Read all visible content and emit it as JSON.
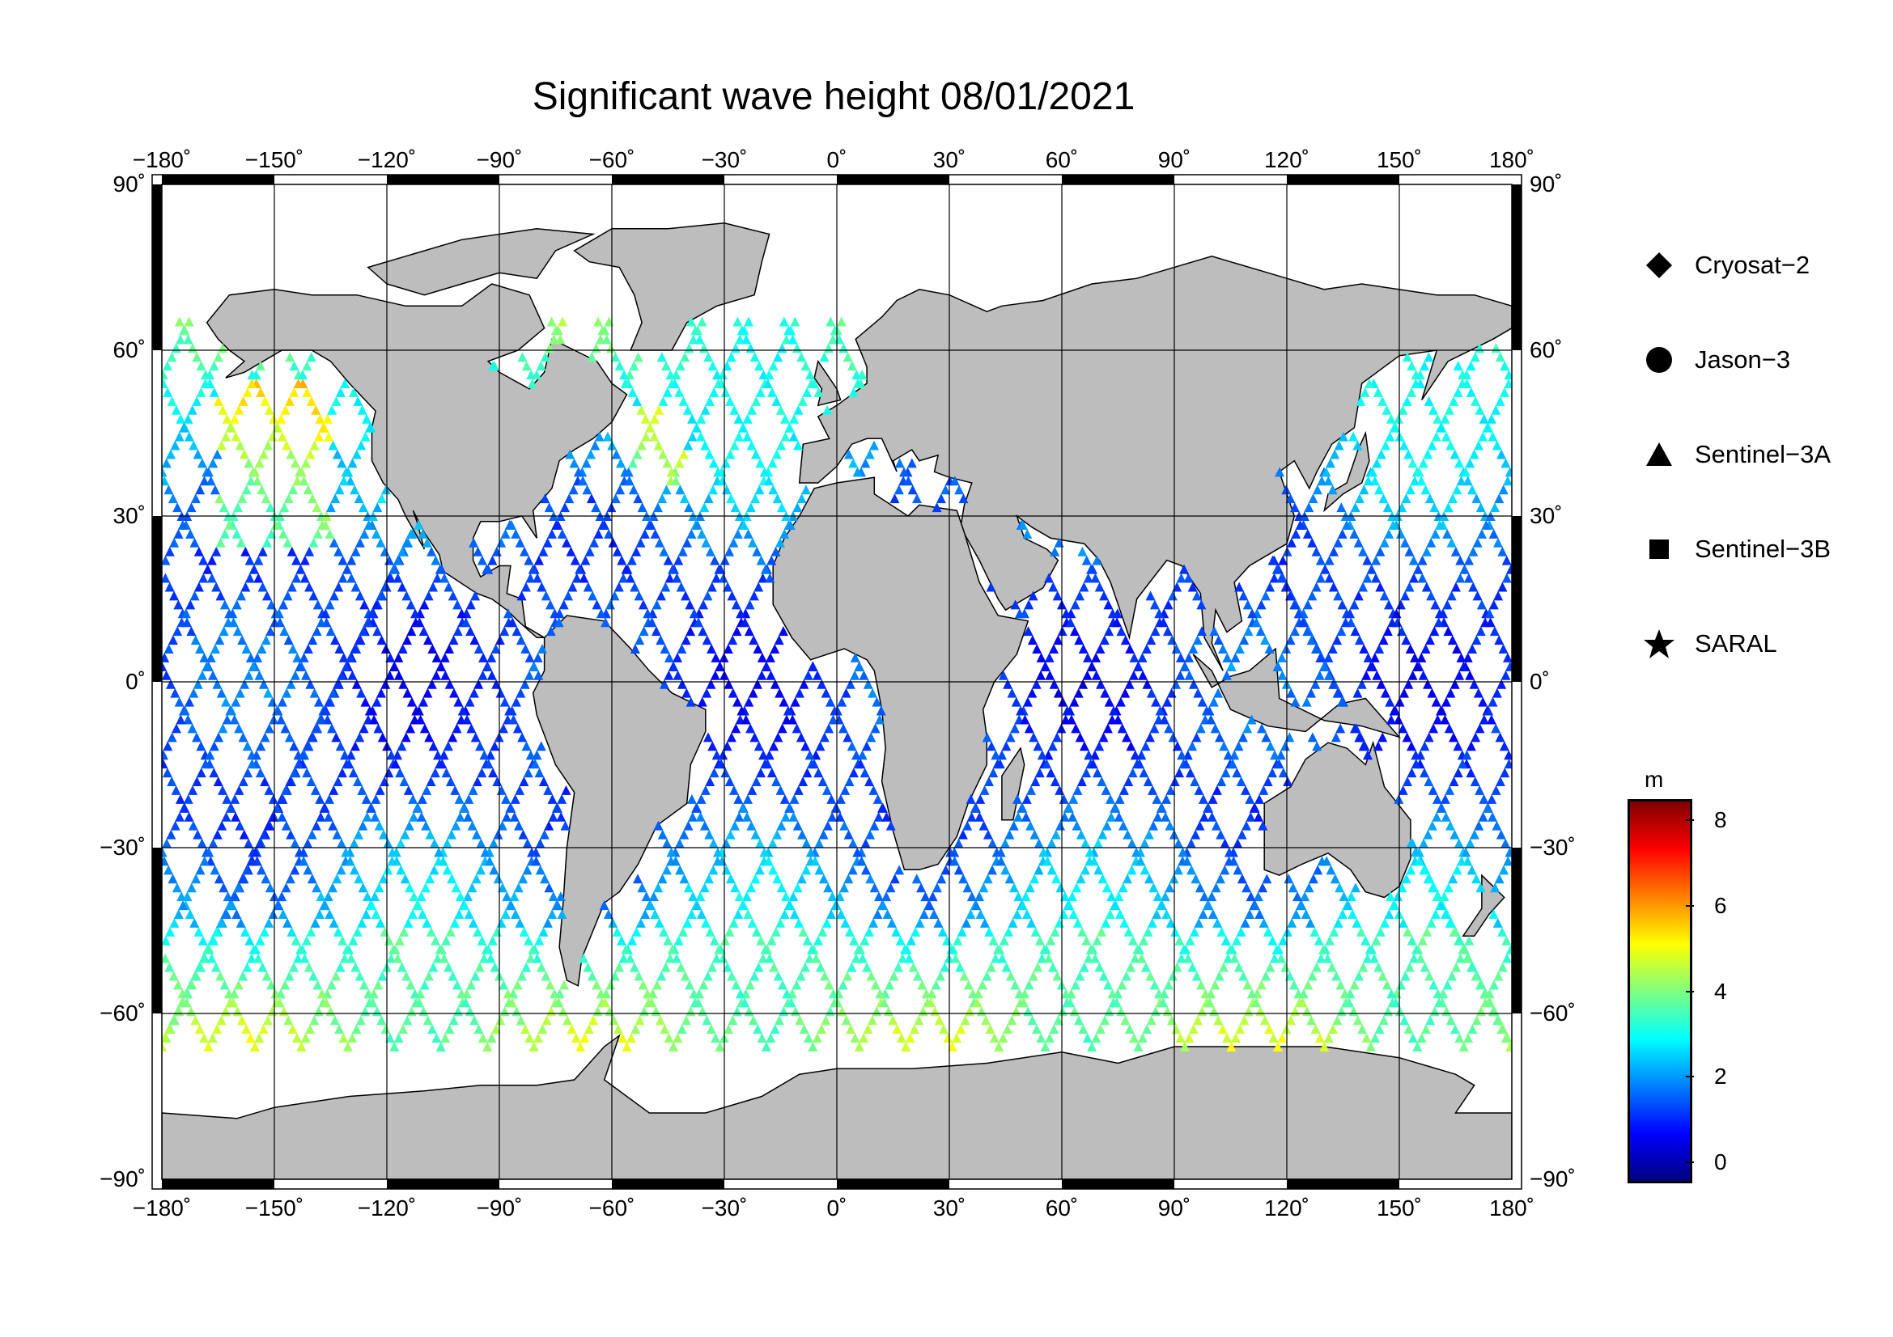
{
  "title": "Significant wave height 08/01/2021",
  "map": {
    "lon_ticks": [
      "−180˚",
      "−150˚",
      "−120˚",
      "−90˚",
      "−60˚",
      "−30˚",
      "0˚",
      "30˚",
      "60˚",
      "90˚",
      "120˚",
      "150˚",
      "180˚"
    ],
    "lat_ticks": [
      "90˚",
      "60˚",
      "30˚",
      "0˚",
      "−30˚",
      "−60˚",
      "−90˚"
    ],
    "land_color": "#bdbdbd",
    "ocean_color": "#ffffff"
  },
  "legend": {
    "items": [
      {
        "label": "Cryosat−2",
        "symbol": "diamond"
      },
      {
        "label": "Jason−3",
        "symbol": "circle"
      },
      {
        "label": "Sentinel−3A",
        "symbol": "triangle"
      },
      {
        "label": "Sentinel−3B",
        "symbol": "square"
      },
      {
        "label": "SARAL",
        "symbol": "star"
      }
    ]
  },
  "colorbar": {
    "unit": "m",
    "range": [
      -0.5,
      8.5
    ],
    "ticks": [
      "8",
      "6",
      "4",
      "2",
      "0"
    ],
    "tick_values": [
      8,
      6,
      4,
      2,
      0
    ],
    "colors": [
      "#00007f",
      "#0000ff",
      "#007fff",
      "#00ffff",
      "#7fff7f",
      "#ffff00",
      "#ff7f00",
      "#ff0000",
      "#7f0000"
    ]
  }
}
